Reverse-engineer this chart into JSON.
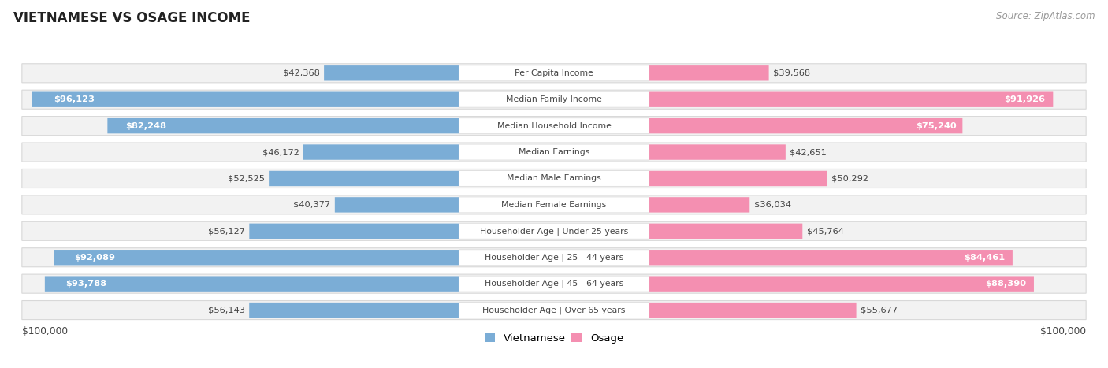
{
  "title": "VIETNAMESE VS OSAGE INCOME",
  "source": "Source: ZipAtlas.com",
  "categories": [
    "Per Capita Income",
    "Median Family Income",
    "Median Household Income",
    "Median Earnings",
    "Median Male Earnings",
    "Median Female Earnings",
    "Householder Age | Under 25 years",
    "Householder Age | 25 - 44 years",
    "Householder Age | 45 - 64 years",
    "Householder Age | Over 65 years"
  ],
  "vietnamese_values": [
    42368,
    96123,
    82248,
    46172,
    52525,
    40377,
    56127,
    92089,
    93788,
    56143
  ],
  "osage_values": [
    39568,
    91926,
    75240,
    42651,
    50292,
    36034,
    45764,
    84461,
    88390,
    55677
  ],
  "max_value": 100000,
  "vietnamese_color_light": "#aec9e8",
  "vietnamese_color_mid": "#7badd6",
  "vietnamese_color_dark": "#5b9ecf",
  "osage_color_light": "#f9b8ce",
  "osage_color_mid": "#f48fb1",
  "osage_color_dark": "#f06292",
  "row_bg": "#f2f2f2",
  "row_border": "#d8d8d8",
  "label_bg": "#ffffff",
  "label_border": "#e0e0e0",
  "text_dark": "#444444",
  "text_white": "#ffffff",
  "bg_color": "#ffffff",
  "xlabel_left": "$100,000",
  "xlabel_right": "$100,000",
  "legend_vietnamese": "Vietnamese",
  "legend_osage": "Osage",
  "viet_white_threshold": 60000,
  "osage_white_threshold": 60000
}
